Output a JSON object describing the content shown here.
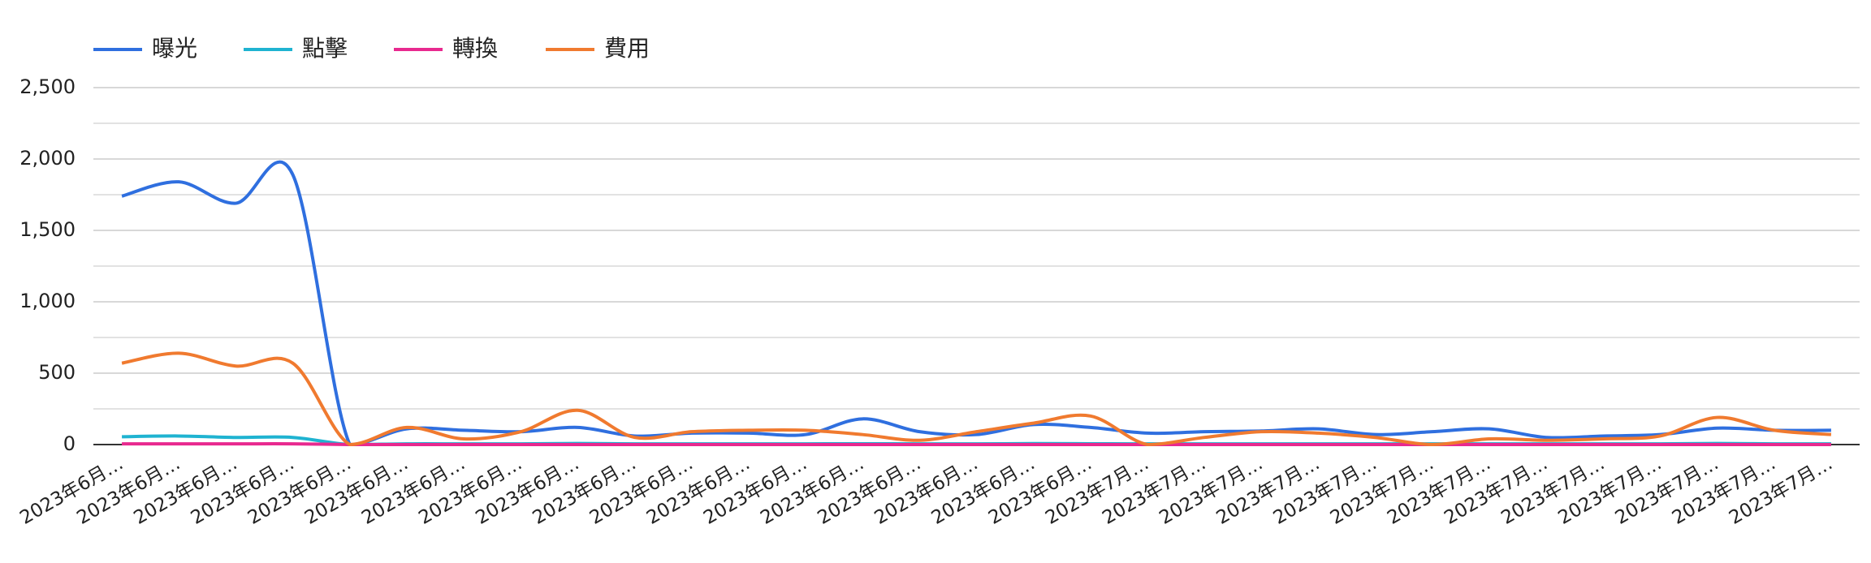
{
  "chart_data": {
    "type": "line",
    "legend": "top-left",
    "grid": true,
    "categories": [
      "2023年6月…",
      "2023年6月…",
      "2023年6月…",
      "2023年6月…",
      "2023年6月…",
      "2023年6月…",
      "2023年6月…",
      "2023年6月…",
      "2023年6月…",
      "2023年6月…",
      "2023年6月…",
      "2023年6月…",
      "2023年6月…",
      "2023年6月…",
      "2023年6月…",
      "2023年6月…",
      "2023年6月…",
      "2023年6月…",
      "2023年7月…",
      "2023年7月…",
      "2023年7月…",
      "2023年7月…",
      "2023年7月…",
      "2023年7月…",
      "2023年7月…",
      "2023年7月…",
      "2023年7月…",
      "2023年7月…",
      "2023年7月…",
      "2023年7月…",
      "2023年7月…"
    ],
    "ylim": [
      0,
      2500
    ],
    "yticks": [
      0,
      {
        "value": 500,
        "label": "500"
      },
      {
        "value": 1000,
        "label": "1,000"
      },
      {
        "value": 1500,
        "label": "1,500"
      },
      {
        "value": 2000,
        "label": "2,000"
      },
      {
        "value": 2500,
        "label": "2,500"
      }
    ],
    "minor_yticks": [
      250,
      750,
      1250,
      1750,
      2250
    ],
    "series": [
      {
        "name": "曝光",
        "color": "#2f6fdf",
        "values": [
          1740,
          1840,
          1690,
          1890,
          0,
          110,
          100,
          90,
          120,
          60,
          80,
          80,
          70,
          180,
          90,
          70,
          140,
          120,
          80,
          90,
          95,
          110,
          70,
          90,
          110,
          50,
          60,
          70,
          115,
          100,
          100
        ]
      },
      {
        "name": "點擊",
        "color": "#1fb3d1",
        "values": [
          55,
          60,
          50,
          50,
          0,
          5,
          5,
          5,
          8,
          5,
          5,
          5,
          5,
          6,
          5,
          5,
          7,
          6,
          5,
          5,
          5,
          5,
          5,
          5,
          5,
          5,
          5,
          5,
          8,
          5,
          5
        ]
      },
      {
        "name": "轉換",
        "color": "#e8298f",
        "values": [
          5,
          5,
          5,
          5,
          0,
          0,
          0,
          0,
          0,
          0,
          0,
          0,
          0,
          0,
          0,
          0,
          0,
          0,
          0,
          0,
          0,
          0,
          0,
          0,
          0,
          0,
          0,
          0,
          0,
          0,
          0
        ]
      },
      {
        "name": "費用",
        "color": "#f07a2f",
        "values": [
          570,
          640,
          550,
          570,
          0,
          120,
          40,
          90,
          240,
          50,
          90,
          100,
          100,
          70,
          30,
          90,
          150,
          200,
          0,
          50,
          90,
          80,
          50,
          0,
          40,
          30,
          40,
          60,
          190,
          100,
          70
        ]
      }
    ]
  }
}
